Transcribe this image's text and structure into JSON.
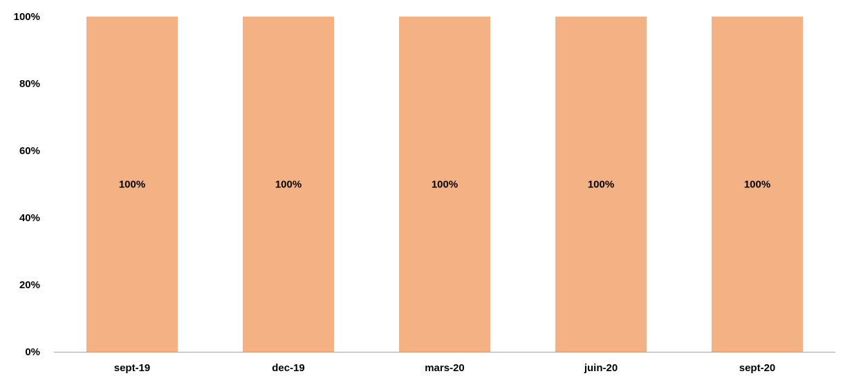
{
  "chart_data": {
    "type": "bar",
    "stacked": true,
    "categories": [
      "sept-19",
      "dec-19",
      "mars-20",
      "juin-20",
      "sept-20"
    ],
    "series": [
      {
        "values": [
          100,
          100,
          100,
          100,
          100
        ],
        "data_labels": [
          "100%",
          "100%",
          "100%",
          "100%",
          "100%"
        ],
        "color": "#F4B183"
      }
    ],
    "y_ticks": [
      {
        "value": 0,
        "label": "0%"
      },
      {
        "value": 20,
        "label": "20%"
      },
      {
        "value": 40,
        "label": "40%"
      },
      {
        "value": 60,
        "label": "60%"
      },
      {
        "value": 80,
        "label": "80%"
      },
      {
        "value": 100,
        "label": "100%"
      }
    ],
    "ylim": [
      0,
      100
    ],
    "grid": false,
    "legend": "none",
    "title": "",
    "xlabel": "",
    "ylabel": "",
    "axis_color": "#A6A6A6"
  }
}
